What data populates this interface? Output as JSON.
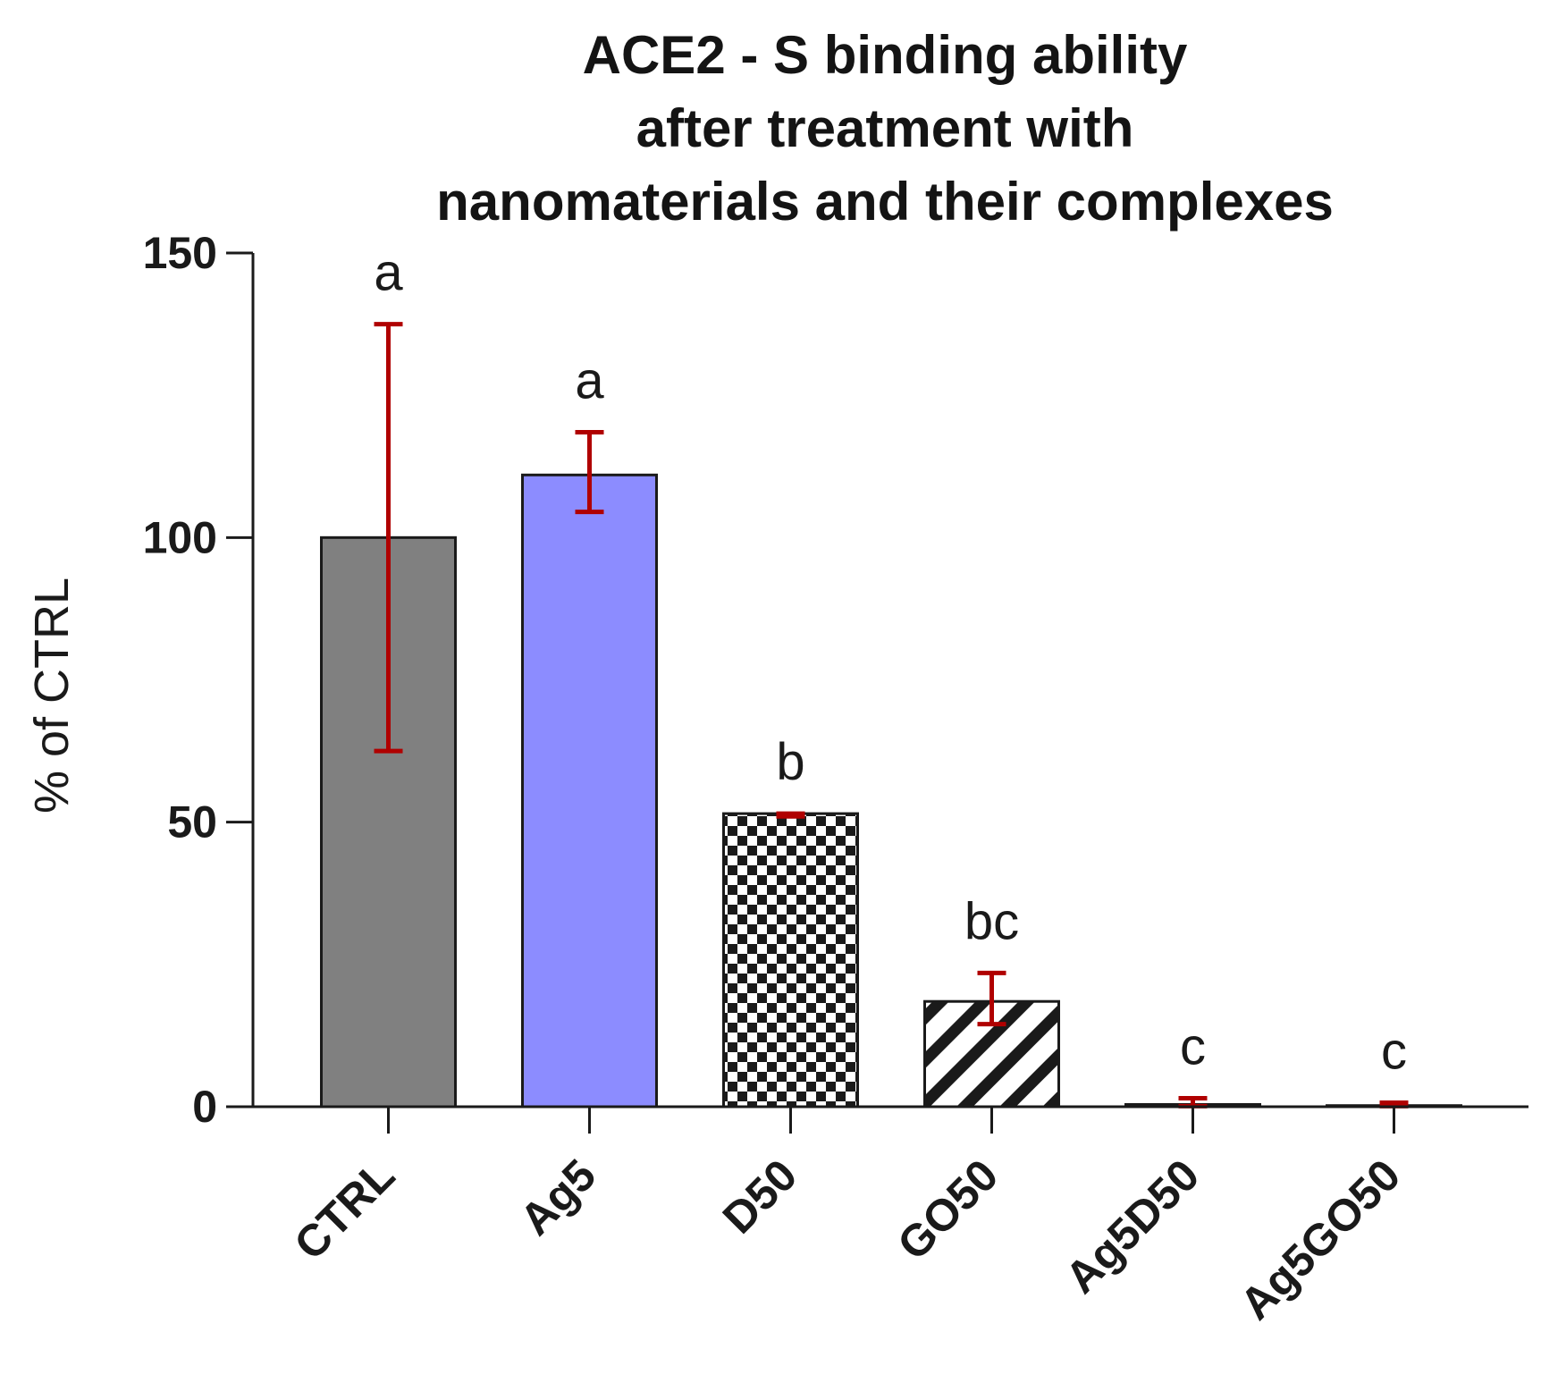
{
  "chart_data": {
    "type": "bar",
    "title": [
      "ACE2 - S binding ability",
      "after treatment with",
      "nanomaterials and their complexes"
    ],
    "xlabel": "",
    "ylabel": "% of CTRL",
    "ylim": [
      0,
      150
    ],
    "yticks": [
      0,
      50,
      100,
      150
    ],
    "categories": [
      "CTRL",
      "Ag5",
      "D50",
      "GO50",
      "Ag5D50",
      "Ag5GO50"
    ],
    "values": [
      100,
      111,
      51.5,
      18.5,
      0.4,
      0.2
    ],
    "errors": [
      {
        "low": 62.5,
        "high": 137.5
      },
      {
        "low": 104.5,
        "high": 118.5
      },
      {
        "low": 51,
        "high": 51.5
      },
      {
        "low": 14.5,
        "high": 23.5
      },
      {
        "low": 0.1,
        "high": 1.5
      },
      {
        "low": 0.1,
        "high": 0.7
      }
    ],
    "significance": [
      "a",
      "a",
      "b",
      "bc",
      "c",
      "c"
    ],
    "fills": [
      "solid-gray",
      "solid-blue",
      "checkerboard",
      "diagonal-stripes",
      "solid-gray",
      "none"
    ],
    "colors": {
      "gray": "#808080",
      "blue": "#8c8cff",
      "error": "#b00000",
      "axis": "#1a1a1a"
    }
  }
}
